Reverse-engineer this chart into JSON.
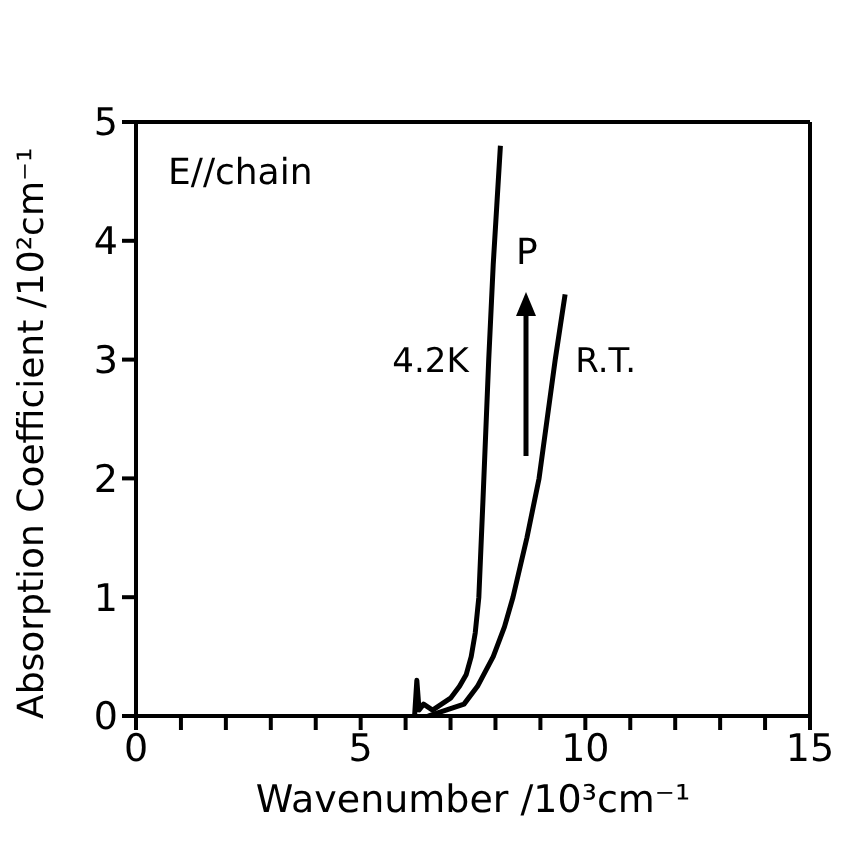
{
  "chart_data": {
    "type": "line",
    "xlabel": "Wavenumber /10³cm⁻¹",
    "ylabel": "Absorption Coefficient /10²cm⁻¹",
    "annotations": [
      "E//chain",
      "P"
    ],
    "xlim": [
      0,
      15
    ],
    "xticks": [
      0,
      {
        "value": 1,
        "label": null
      },
      {
        "value": 2,
        "label": null
      },
      {
        "value": 3,
        "label": null
      },
      {
        "value": 4,
        "label": null
      },
      5,
      {
        "value": 6,
        "label": null
      },
      {
        "value": 7,
        "label": null
      },
      {
        "value": 8,
        "label": null
      },
      {
        "value": 9,
        "label": null
      },
      10,
      {
        "value": 11,
        "label": null
      },
      {
        "value": 12,
        "label": null
      },
      {
        "value": 13,
        "label": null
      },
      {
        "value": 14,
        "label": null
      },
      15
    ],
    "ylim": [
      0,
      5
    ],
    "yticks": [
      0,
      1,
      2,
      3,
      4,
      5
    ],
    "grid": false,
    "legend": false,
    "marker": "none",
    "line_style": "solid",
    "series": [
      {
        "name": "4.2K",
        "color": "#000000",
        "x": [
          6.2,
          6.25,
          6.3,
          6.4,
          6.6,
          6.8,
          7.0,
          7.2,
          7.35,
          7.46,
          7.55,
          7.63,
          7.72,
          7.85,
          7.95,
          8.03,
          8.11
        ],
        "values": [
          0,
          0.3,
          0.05,
          0.1,
          0.05,
          0.1,
          0.15,
          0.25,
          0.35,
          0.5,
          0.7,
          1,
          1.8,
          3,
          3.8,
          4.3,
          4.8
        ]
      },
      {
        "name": "R.T.",
        "color": "#000000",
        "x": [
          6.5,
          6.9,
          7.3,
          7.6,
          7.95,
          8.2,
          8.39,
          8.7,
          8.97,
          9.15,
          9.33,
          9.45,
          9.55
        ],
        "values": [
          0,
          0.05,
          0.1,
          0.25,
          0.5,
          0.75,
          1,
          1.5,
          2,
          2.5,
          3,
          3.3,
          3.55
        ]
      }
    ]
  }
}
